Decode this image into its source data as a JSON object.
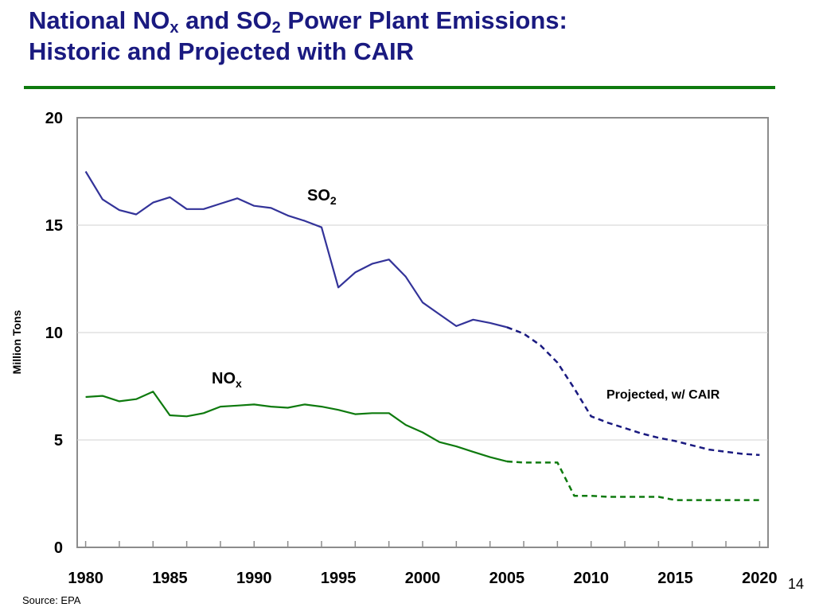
{
  "title": {
    "l1a": "National NO",
    "l1b": "x",
    "l1c": " and SO",
    "l1d": "2",
    "l1e": " Power Plant Emissions:",
    "l2": "Historic and Projected with CAIR"
  },
  "slide_number": "14",
  "source": "Source: EPA",
  "colors": {
    "title": "#1a1a80",
    "rule": "#0e7a0e",
    "so2": "#333399",
    "nox": "#0e7a0e",
    "projected_so2": "#1a1a80"
  },
  "chart_data": {
    "type": "line",
    "ylabel": "Million Tons",
    "xlim": [
      1980,
      2020
    ],
    "ylim": [
      0,
      20
    ],
    "x_ticks": [
      "1980",
      "1985",
      "1990",
      "1995",
      "2000",
      "2005",
      "2010",
      "2015",
      "2020"
    ],
    "y_ticks": [
      "0",
      "5",
      "10",
      "15",
      "20"
    ],
    "grid": "horizontal",
    "annotations": {
      "so2_main": "SO",
      "so2_sub": "2",
      "nox_main": "NO",
      "nox_sub": "x",
      "projected": "Projected, w/ CAIR"
    },
    "series": [
      {
        "name": "SO2",
        "style": "solid",
        "x": [
          1980,
          1981,
          1982,
          1983,
          1984,
          1985,
          1986,
          1987,
          1988,
          1989,
          1990,
          1991,
          1992,
          1993,
          1994,
          1995,
          1996,
          1997,
          1998,
          1999,
          2000,
          2001,
          2002,
          2003,
          2004,
          2005
        ],
        "y": [
          17.5,
          16.2,
          15.7,
          15.5,
          16.05,
          16.3,
          15.75,
          15.75,
          16.0,
          16.25,
          15.9,
          15.8,
          15.45,
          15.2,
          14.9,
          12.1,
          12.8,
          13.2,
          13.4,
          12.6,
          11.4,
          10.85,
          10.3,
          10.6,
          10.45,
          10.25
        ]
      },
      {
        "name": "SO2 projected",
        "style": "dashed",
        "x": [
          2005,
          2006,
          2007,
          2008,
          2009,
          2010,
          2011,
          2012,
          2013,
          2014,
          2015,
          2016,
          2017,
          2018,
          2019,
          2020
        ],
        "y": [
          10.25,
          9.95,
          9.4,
          8.6,
          7.4,
          6.1,
          5.8,
          5.55,
          5.3,
          5.1,
          4.95,
          4.75,
          4.55,
          4.45,
          4.35,
          4.3
        ]
      },
      {
        "name": "NOx",
        "style": "solid",
        "x": [
          1980,
          1981,
          1982,
          1983,
          1984,
          1985,
          1986,
          1987,
          1988,
          1989,
          1990,
          1991,
          1992,
          1993,
          1994,
          1995,
          1996,
          1997,
          1998,
          1999,
          2000,
          2001,
          2002,
          2003,
          2004,
          2005
        ],
        "y": [
          7.0,
          7.05,
          6.8,
          6.9,
          7.25,
          6.15,
          6.1,
          6.25,
          6.55,
          6.6,
          6.65,
          6.55,
          6.5,
          6.65,
          6.55,
          6.4,
          6.2,
          6.25,
          6.25,
          5.7,
          5.35,
          4.9,
          4.7,
          4.45,
          4.2,
          4.0
        ]
      },
      {
        "name": "NOx projected",
        "style": "dashed",
        "x": [
          2005,
          2006,
          2007,
          2008,
          2009,
          2010,
          2011,
          2012,
          2013,
          2014,
          2015,
          2016,
          2017,
          2018,
          2019,
          2020
        ],
        "y": [
          4.0,
          3.95,
          3.95,
          3.95,
          2.4,
          2.4,
          2.35,
          2.35,
          2.35,
          2.35,
          2.2,
          2.2,
          2.2,
          2.2,
          2.2,
          2.2
        ]
      }
    ]
  }
}
